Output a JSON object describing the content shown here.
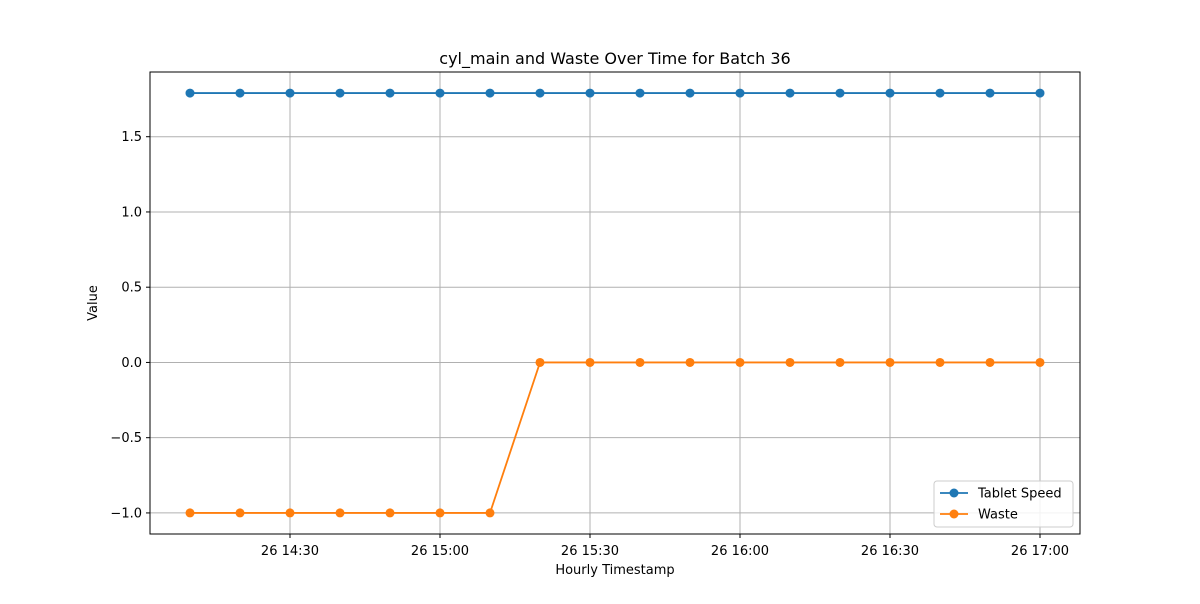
{
  "chart_data": {
    "type": "line",
    "title": "cyl_main and Waste Over Time for Batch 36",
    "xlabel": "Hourly Timestamp",
    "ylabel": "Value",
    "x": [
      "14:10",
      "14:20",
      "14:30",
      "14:40",
      "14:50",
      "15:00",
      "15:10",
      "15:20",
      "15:30",
      "15:40",
      "15:50",
      "16:00",
      "16:10",
      "16:20",
      "16:30",
      "16:40",
      "16:50",
      "17:00"
    ],
    "x_ticks": [
      {
        "value": "14:30",
        "label": "26 14:30"
      },
      {
        "value": "15:00",
        "label": "26 15:00"
      },
      {
        "value": "15:30",
        "label": "26 15:30"
      },
      {
        "value": "16:00",
        "label": "26 16:00"
      },
      {
        "value": "16:30",
        "label": "26 16:30"
      },
      {
        "value": "17:00",
        "label": "26 17:00"
      }
    ],
    "y_ticks": [
      {
        "value": -1.0,
        "label": "−1.0"
      },
      {
        "value": -0.5,
        "label": "−0.5"
      },
      {
        "value": 0.0,
        "label": "0.0"
      },
      {
        "value": 0.5,
        "label": "0.5"
      },
      {
        "value": 1.0,
        "label": "1.0"
      },
      {
        "value": 1.5,
        "label": "1.5"
      }
    ],
    "xlim": [
      "14:02",
      "17:08"
    ],
    "ylim": [
      -1.14,
      1.93
    ],
    "grid": true,
    "legend_position": "lower-right",
    "series": [
      {
        "name": "Tablet Speed",
        "color": "#1f77b4",
        "marker": "circle",
        "values": [
          1.79,
          1.79,
          1.79,
          1.79,
          1.79,
          1.79,
          1.79,
          1.79,
          1.79,
          1.79,
          1.79,
          1.79,
          1.79,
          1.79,
          1.79,
          1.79,
          1.79,
          1.79
        ]
      },
      {
        "name": "Waste",
        "color": "#ff7f0e",
        "marker": "circle",
        "values": [
          -1,
          -1,
          -1,
          -1,
          -1,
          -1,
          -1,
          0,
          0,
          0,
          0,
          0,
          0,
          0,
          0,
          0,
          0,
          0
        ]
      }
    ]
  }
}
